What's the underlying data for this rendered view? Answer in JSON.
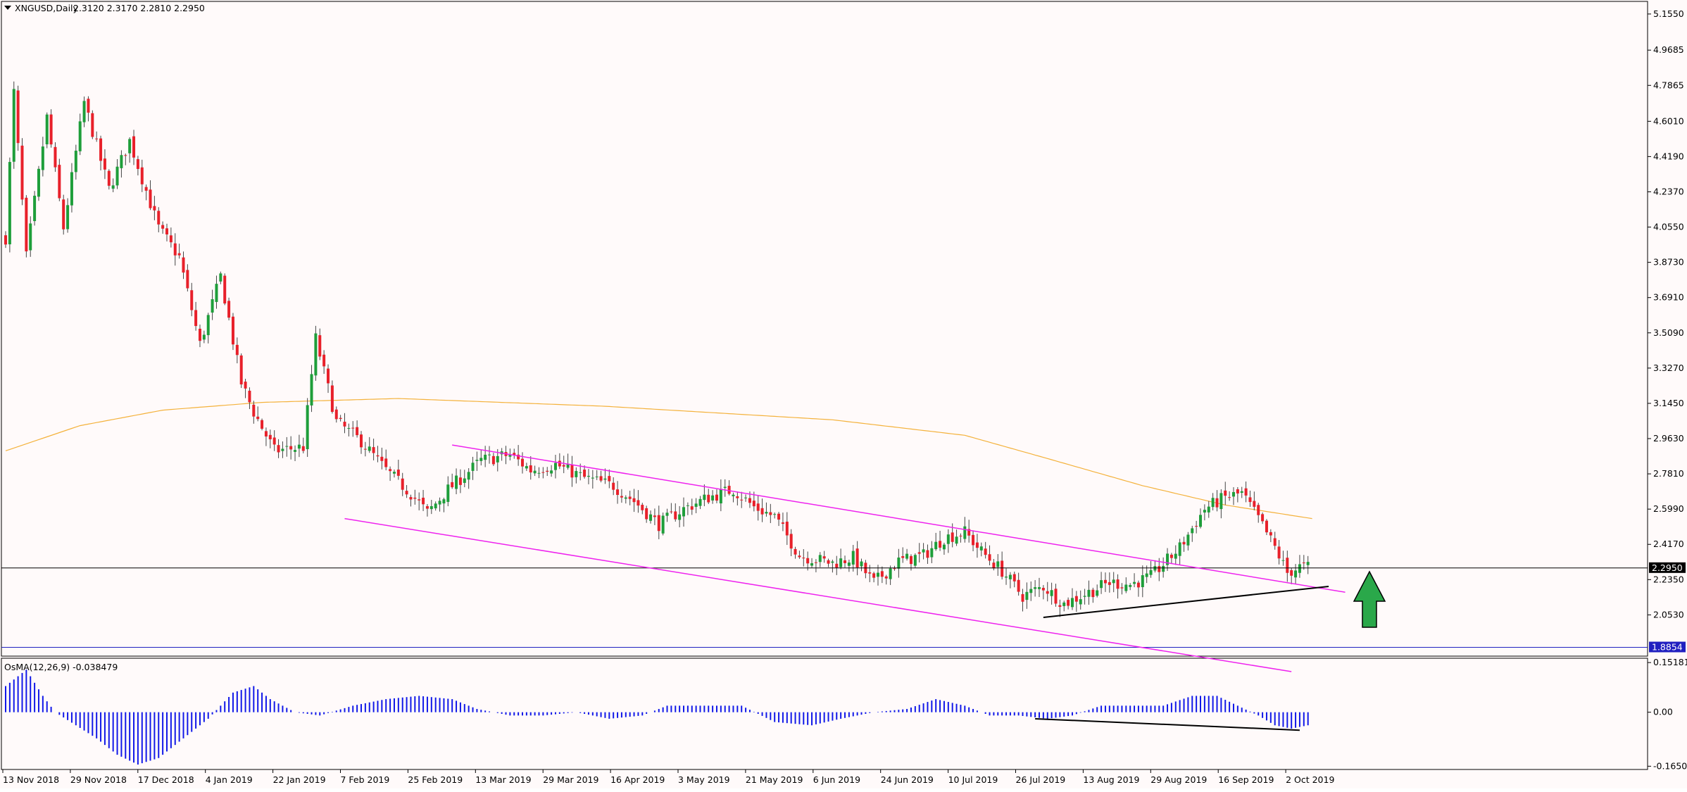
{
  "header": {
    "symbol": "XNGUSD,Daily",
    "ohlc": "2.3120 2.3170 2.2810 2.2950"
  },
  "osma_label": "OsMA(12,26,9) -0.038479",
  "colors": {
    "background": "#fffafa",
    "bull_candle": "#1e9e3a",
    "bear_candle": "#e8202a",
    "wick": "#444444",
    "ma_line": "#f4b23c",
    "channel": "#ee22ee",
    "trendline": "#000000",
    "osma_bar": "#1018e8",
    "current_price_line": "#000000",
    "level_line": "#2020c0",
    "arrow": "#2aa84a"
  },
  "chart_data": [
    {
      "type": "candlestick",
      "title": "XNGUSD,Daily",
      "y_ticks": [
        "5.1550",
        "4.9685",
        "4.7865",
        "4.6010",
        "4.4190",
        "4.2370",
        "4.0550",
        "3.8730",
        "3.6910",
        "3.5090",
        "3.3270",
        "3.1450",
        "2.9630",
        "2.7810",
        "2.5990",
        "2.4170",
        "2.2350",
        "2.0530"
      ],
      "ylim": [
        1.84,
        5.22
      ],
      "current_price": "2.2950",
      "level": "1.8854",
      "x_ticks": [
        "13 Nov 2018",
        "29 Nov 2018",
        "17 Dec 2018",
        "4 Jan 2019",
        "22 Jan 2019",
        "7 Feb 2019",
        "25 Feb 2019",
        "13 Mar 2019",
        "29 Mar 2019",
        "16 Apr 2019",
        "3 May 2019",
        "21 May 2019",
        "6 Jun 2019",
        "24 Jun 2019",
        "10 Jul 2019",
        "26 Jul 2019",
        "13 Aug 2019",
        "29 Aug 2019",
        "16 Sep 2019",
        "2 Oct 2019"
      ],
      "anchors": [
        [
          0,
          4.0
        ],
        [
          2,
          4.75
        ],
        [
          5,
          3.9
        ],
        [
          10,
          4.62
        ],
        [
          14,
          4.05
        ],
        [
          19,
          4.7
        ],
        [
          25,
          4.25
        ],
        [
          30,
          4.5
        ],
        [
          37,
          4.05
        ],
        [
          42,
          3.9
        ],
        [
          47,
          3.45
        ],
        [
          52,
          3.8
        ],
        [
          57,
          3.25
        ],
        [
          60,
          3.1
        ],
        [
          65,
          2.9
        ],
        [
          72,
          2.92
        ],
        [
          75,
          3.48
        ],
        [
          80,
          3.05
        ],
        [
          86,
          2.95
        ],
        [
          92,
          2.8
        ],
        [
          98,
          2.68
        ],
        [
          102,
          2.58
        ],
        [
          107,
          2.7
        ],
        [
          115,
          2.85
        ],
        [
          122,
          2.88
        ],
        [
          127,
          2.8
        ],
        [
          133,
          2.83
        ],
        [
          140,
          2.76
        ],
        [
          147,
          2.72
        ],
        [
          152,
          2.64
        ],
        [
          158,
          2.52
        ],
        [
          164,
          2.6
        ],
        [
          170,
          2.66
        ],
        [
          176,
          2.7
        ],
        [
          181,
          2.61
        ],
        [
          186,
          2.56
        ],
        [
          192,
          2.36
        ],
        [
          200,
          2.32
        ],
        [
          205,
          2.35
        ],
        [
          210,
          2.22
        ],
        [
          216,
          2.33
        ],
        [
          222,
          2.36
        ],
        [
          227,
          2.45
        ],
        [
          232,
          2.48
        ],
        [
          236,
          2.38
        ],
        [
          241,
          2.28
        ],
        [
          246,
          2.15
        ],
        [
          251,
          2.2
        ],
        [
          256,
          2.11
        ],
        [
          262,
          2.17
        ],
        [
          267,
          2.22
        ],
        [
          272,
          2.21
        ],
        [
          277,
          2.25
        ],
        [
          284,
          2.4
        ],
        [
          290,
          2.6
        ],
        [
          295,
          2.66
        ],
        [
          299,
          2.68
        ],
        [
          303,
          2.55
        ],
        [
          307,
          2.4
        ],
        [
          310,
          2.27
        ],
        [
          313,
          2.3
        ],
        [
          315,
          2.3
        ]
      ],
      "ma_anchors": [
        [
          0,
          2.9
        ],
        [
          18,
          3.03
        ],
        [
          38,
          3.11
        ],
        [
          62,
          3.15
        ],
        [
          95,
          3.17
        ],
        [
          145,
          3.13
        ],
        [
          200,
          3.06
        ],
        [
          232,
          2.98
        ],
        [
          252,
          2.86
        ],
        [
          275,
          2.72
        ],
        [
          295,
          2.62
        ],
        [
          316,
          2.55
        ]
      ],
      "channel_upper": [
        [
          108,
          2.93
        ],
        [
          324,
          2.17
        ]
      ],
      "channel_lower": [
        [
          82,
          2.55
        ],
        [
          311,
          1.76
        ]
      ],
      "support_line": [
        [
          251,
          2.04
        ],
        [
          320,
          2.2
        ]
      ]
    },
    {
      "type": "histogram",
      "title": "OsMA(12,26,9) -0.038479",
      "y_ticks": [
        "0.15181",
        "0.00",
        "-0.165034"
      ],
      "ylim": [
        -0.175,
        0.165
      ],
      "value_anchors": [
        [
          0,
          0.08
        ],
        [
          5,
          0.13
        ],
        [
          9,
          0.05
        ],
        [
          12,
          0.0
        ],
        [
          17,
          -0.04
        ],
        [
          22,
          -0.08
        ],
        [
          27,
          -0.13
        ],
        [
          32,
          -0.16
        ],
        [
          37,
          -0.14
        ],
        [
          43,
          -0.08
        ],
        [
          49,
          -0.02
        ],
        [
          55,
          0.06
        ],
        [
          60,
          0.08
        ],
        [
          64,
          0.04
        ],
        [
          70,
          0.0
        ],
        [
          76,
          -0.01
        ],
        [
          84,
          0.02
        ],
        [
          92,
          0.04
        ],
        [
          100,
          0.05
        ],
        [
          108,
          0.04
        ],
        [
          114,
          0.01
        ],
        [
          122,
          -0.01
        ],
        [
          130,
          -0.01
        ],
        [
          138,
          0.0
        ],
        [
          146,
          -0.02
        ],
        [
          154,
          -0.01
        ],
        [
          160,
          0.02
        ],
        [
          166,
          0.02
        ],
        [
          172,
          0.02
        ],
        [
          178,
          0.02
        ],
        [
          186,
          -0.03
        ],
        [
          195,
          -0.04
        ],
        [
          202,
          -0.02
        ],
        [
          210,
          0.0
        ],
        [
          218,
          0.01
        ],
        [
          225,
          0.04
        ],
        [
          232,
          0.02
        ],
        [
          238,
          -0.01
        ],
        [
          245,
          -0.01
        ],
        [
          252,
          -0.02
        ],
        [
          258,
          -0.01
        ],
        [
          265,
          0.02
        ],
        [
          272,
          0.02
        ],
        [
          280,
          0.02
        ],
        [
          287,
          0.05
        ],
        [
          293,
          0.05
        ],
        [
          298,
          0.02
        ],
        [
          303,
          -0.01
        ],
        [
          307,
          -0.04
        ],
        [
          311,
          -0.05
        ],
        [
          315,
          -0.04
        ]
      ],
      "trendline": [
        [
          249,
          -0.02
        ],
        [
          313,
          -0.055
        ]
      ]
    }
  ]
}
